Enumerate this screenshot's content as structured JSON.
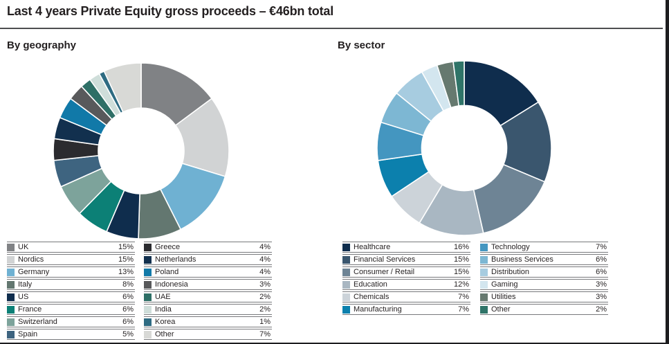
{
  "page": {
    "title": "Last 4 years Private Equity gross proceeds – €46bn total"
  },
  "chart_data": [
    {
      "type": "pie",
      "donut": true,
      "title": "By geography",
      "unit": "%",
      "labels": [
        "UK",
        "Nordics",
        "Germany",
        "Italy",
        "US",
        "France",
        "Switzerland",
        "Spain",
        "Greece",
        "Netherlands",
        "Poland",
        "Indonesia",
        "UAE",
        "India",
        "Korea",
        "Other"
      ],
      "values": [
        15,
        15,
        13,
        8,
        6,
        6,
        6,
        5,
        4,
        4,
        4,
        3,
        2,
        2,
        1,
        7
      ],
      "colors": [
        "#808285",
        "#d1d3d4",
        "#6fb1d2",
        "#637770",
        "#0f2d4d",
        "#0c8076",
        "#7da39b",
        "#3e6480",
        "#2b2b2f",
        "#12304e",
        "#1179a8",
        "#58595b",
        "#2e6f66",
        "#cfdeda",
        "#2e6b82",
        "#d8d9d6"
      ],
      "legend_start_angle": "12-oclock",
      "direction": "clockwise"
    },
    {
      "type": "pie",
      "donut": true,
      "title": "By sector",
      "unit": "%",
      "labels": [
        "Healthcare",
        "Financial Services",
        "Consumer / Retail",
        "Education",
        "Chemicals",
        "Manufacturing",
        "Technology",
        "Business Services",
        "Distribution",
        "Gaming",
        "Utilities",
        "Other"
      ],
      "values": [
        16,
        15,
        15,
        12,
        7,
        7,
        7,
        6,
        6,
        3,
        3,
        2
      ],
      "colors": [
        "#0f2d4d",
        "#3a566e",
        "#6e8495",
        "#a9b7c2",
        "#ccd3d9",
        "#0c80ad",
        "#4496c0",
        "#7db7d3",
        "#a7cce0",
        "#d3e6ef",
        "#66796f",
        "#2f7468"
      ],
      "legend_start_angle": "12-oclock",
      "direction": "clockwise"
    }
  ]
}
